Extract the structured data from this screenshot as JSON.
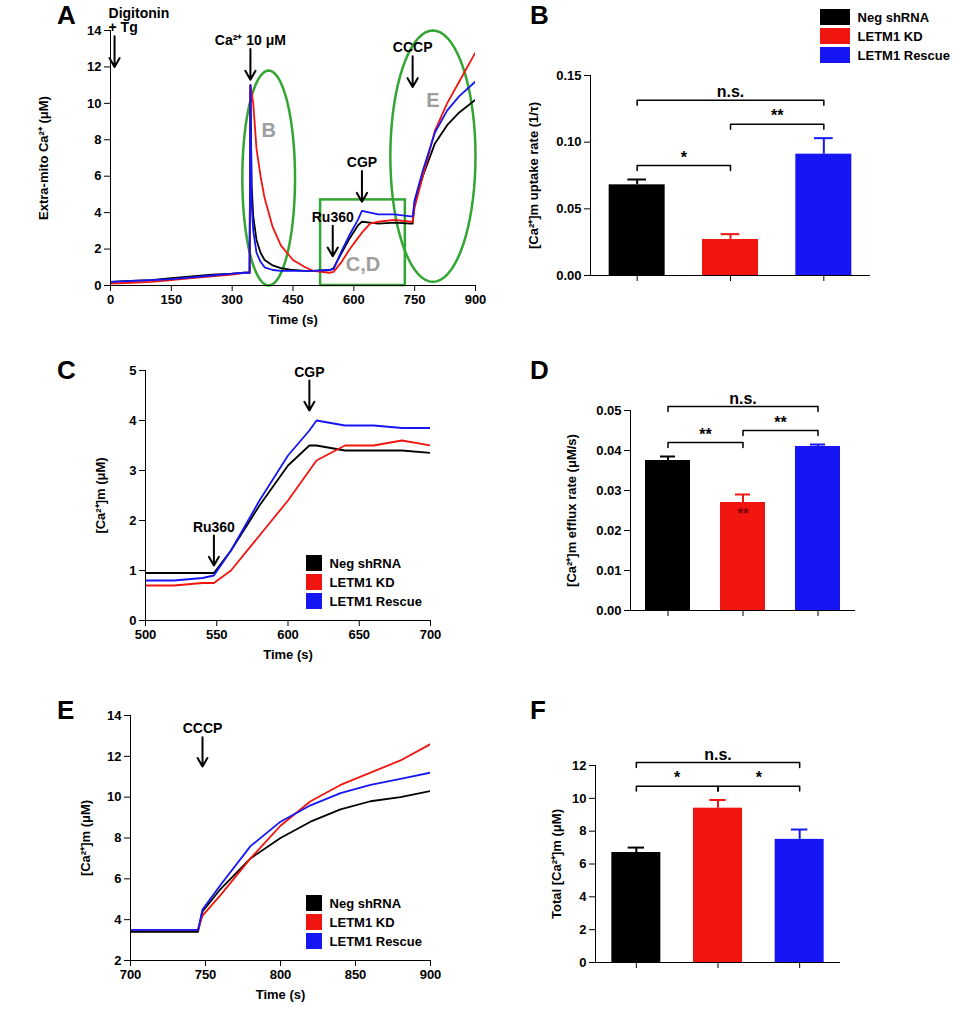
{
  "chart_data": [
    {
      "panel": "A",
      "type": "line",
      "xlabel": "Time (s)",
      "ylabel": "Extra-mito Ca²⁺ (μM)",
      "xlim": [
        0,
        900
      ],
      "xticks": [
        0,
        150,
        300,
        450,
        600,
        750,
        900
      ],
      "ylim": [
        0,
        14
      ],
      "yticks": [
        0,
        2,
        4,
        6,
        8,
        10,
        12,
        14
      ],
      "x": [
        0,
        50,
        100,
        150,
        200,
        250,
        300,
        330,
        343,
        345,
        348,
        352,
        360,
        370,
        380,
        400,
        420,
        450,
        480,
        500,
        540,
        550,
        570,
        590,
        610,
        620,
        640,
        660,
        700,
        740,
        745,
        750,
        770,
        800,
        830,
        860,
        900
      ],
      "series": [
        {
          "name": "Neg shRNA",
          "color": "#000000",
          "values": [
            0.2,
            0.25,
            0.3,
            0.4,
            0.5,
            0.6,
            0.65,
            0.7,
            0.7,
            11,
            5.5,
            3.8,
            2.5,
            1.8,
            1.4,
            1.1,
            0.95,
            0.85,
            0.8,
            0.8,
            0.85,
            0.95,
            1.8,
            2.6,
            3.3,
            3.5,
            3.45,
            3.4,
            3.45,
            3.4,
            3.4,
            4.6,
            6.0,
            7.8,
            8.8,
            9.5,
            10.2
          ]
        },
        {
          "name": "LETM1 KD",
          "color": "#f0150f",
          "values": [
            0.1,
            0.15,
            0.2,
            0.3,
            0.4,
            0.5,
            0.6,
            0.7,
            0.7,
            11,
            10.6,
            10.0,
            7.5,
            6.0,
            4.8,
            3.2,
            2.2,
            1.4,
            1.0,
            0.8,
            0.7,
            0.75,
            1.3,
            2.0,
            2.6,
            2.9,
            3.4,
            3.5,
            3.6,
            3.5,
            3.5,
            4.3,
            6.0,
            8.5,
            10.0,
            11.2,
            12.8
          ]
        },
        {
          "name": "LETM1 Rescue",
          "color": "#1616f5",
          "values": [
            0.2,
            0.25,
            0.3,
            0.35,
            0.45,
            0.55,
            0.65,
            0.7,
            0.7,
            11,
            4.5,
            3.0,
            1.8,
            1.3,
            1.0,
            0.85,
            0.8,
            0.8,
            0.8,
            0.8,
            0.85,
            0.9,
            1.9,
            2.8,
            3.6,
            4.1,
            4.0,
            3.9,
            3.9,
            3.8,
            3.8,
            4.7,
            6.3,
            8.4,
            9.6,
            10.4,
            11.2
          ]
        }
      ],
      "annotations": [
        {
          "text": "Digitonin\n+ Tg",
          "x": 10,
          "y": 12
        },
        {
          "text": "Ca²⁺ 10 μM",
          "x": 345,
          "y": 11.3
        },
        {
          "text": "Ru360",
          "x": 548,
          "y": 1.6
        },
        {
          "text": "CGP",
          "x": 620,
          "y": 4.6
        },
        {
          "text": "CCCP",
          "x": 745,
          "y": 10.9
        }
      ],
      "regions": [
        {
          "label": "B",
          "type": "ellipse",
          "x": [
            325,
            455
          ],
          "y": [
            0,
            11.8
          ],
          "color": "#33a532"
        },
        {
          "label": "C,D",
          "type": "rect",
          "x": [
            518,
            727
          ],
          "y": [
            0,
            4.7
          ],
          "color": "#33a532"
        },
        {
          "label": "E",
          "type": "ellipse",
          "x": [
            690,
            900
          ],
          "y": [
            0.2,
            14
          ],
          "color": "#33a532"
        }
      ]
    },
    {
      "panel": "B",
      "type": "bar",
      "ylabel": "[Ca²⁺]m uptake rate (1/τ)",
      "categories": [
        null,
        null,
        null
      ],
      "values": [
        0.068,
        0.027,
        0.091
      ],
      "errors": [
        0.004,
        0.004,
        0.012
      ],
      "colors": [
        "#000000",
        "#f0150f",
        "#1616f5"
      ],
      "ylim": [
        0,
        0.15
      ],
      "yticks": [
        {
          "value": 0,
          "label": "0.00"
        },
        {
          "value": 0.05,
          "label": "0.05"
        },
        {
          "value": 0.1,
          "label": "0.10"
        },
        {
          "value": 0.15,
          "label": "0.15"
        }
      ],
      "legend": "top-right",
      "legend_labels": [
        "Neg shRNA",
        "LETM1 KD",
        "LETM1 Rescue"
      ],
      "significance": [
        {
          "from": 0,
          "to": 1,
          "label": "*"
        },
        {
          "from": 1,
          "to": 2,
          "label": "**"
        },
        {
          "from": 0,
          "to": 2,
          "label": "n.s."
        }
      ]
    },
    {
      "panel": "C",
      "type": "line",
      "xlabel": "Time (s)",
      "ylabel": "[Ca²⁺]m (μM)",
      "xlim": [
        500,
        700
      ],
      "xticks": [
        500,
        550,
        600,
        650,
        700
      ],
      "ylim": [
        0,
        5
      ],
      "yticks": [
        0,
        1,
        2,
        3,
        4,
        5
      ],
      "x": [
        500,
        520,
        540,
        548,
        560,
        580,
        600,
        615,
        620,
        640,
        660,
        680,
        700
      ],
      "series": [
        {
          "name": "Neg shRNA",
          "color": "#000000",
          "values": [
            0.95,
            0.95,
            0.95,
            0.95,
            1.4,
            2.3,
            3.1,
            3.5,
            3.5,
            3.4,
            3.4,
            3.4,
            3.35
          ]
        },
        {
          "name": "LETM1 KD",
          "color": "#f0150f",
          "values": [
            0.7,
            0.7,
            0.75,
            0.75,
            1.0,
            1.7,
            2.4,
            3.0,
            3.2,
            3.5,
            3.5,
            3.6,
            3.5
          ]
        },
        {
          "name": "LETM1 Rescue",
          "color": "#1616f5",
          "values": [
            0.8,
            0.8,
            0.85,
            0.9,
            1.4,
            2.4,
            3.3,
            3.8,
            4.0,
            3.9,
            3.9,
            3.85,
            3.85
          ]
        }
      ],
      "annotations": [
        {
          "text": "Ru360",
          "x": 548,
          "y": 1.1
        },
        {
          "text": "CGP",
          "x": 615,
          "y": 4.2
        }
      ],
      "legend": "bottom-right"
    },
    {
      "panel": "D",
      "type": "bar",
      "ylabel": "[Ca²⁺]m efflux rate (μM/s)",
      "categories": [
        null,
        null,
        null
      ],
      "values": [
        0.0375,
        0.027,
        0.041
      ],
      "errors": [
        0.001,
        0.002,
        0.0005
      ],
      "colors": [
        "#000000",
        "#f0150f",
        "#1616f5"
      ],
      "ylim": [
        0,
        0.05
      ],
      "yticks": [
        {
          "value": 0,
          "label": "0.00"
        },
        {
          "value": 0.01,
          "label": "0.01"
        },
        {
          "value": 0.02,
          "label": "0.02"
        },
        {
          "value": 0.03,
          "label": "0.03"
        },
        {
          "value": 0.04,
          "label": "0.04"
        },
        {
          "value": 0.05,
          "label": "0.05"
        }
      ],
      "significance": [
        {
          "from": 0,
          "to": 1,
          "label": "**"
        },
        {
          "from": 1,
          "to": 2,
          "label": "**"
        },
        {
          "from": 0,
          "to": 2,
          "label": "n.s."
        }
      ],
      "annotations": [
        {
          "text": "**",
          "x": 1
        }
      ]
    },
    {
      "panel": "E",
      "type": "line",
      "xlabel": "Time (s)",
      "ylabel": "[Ca²⁺]m (μM)",
      "xlim": [
        700,
        900
      ],
      "xticks": [
        700,
        750,
        800,
        850,
        900
      ],
      "ylim": [
        2,
        14
      ],
      "yticks": [
        2,
        4,
        6,
        8,
        10,
        12,
        14
      ],
      "x": [
        700,
        720,
        745,
        748,
        760,
        780,
        800,
        820,
        840,
        860,
        880,
        900
      ],
      "series": [
        {
          "name": "Neg shRNA",
          "color": "#000000",
          "values": [
            3.4,
            3.4,
            3.4,
            4.4,
            5.5,
            7.0,
            8.0,
            8.8,
            9.4,
            9.8,
            10.0,
            10.3
          ]
        },
        {
          "name": "LETM1 KD",
          "color": "#f0150f",
          "values": [
            3.5,
            3.5,
            3.5,
            4.2,
            5.2,
            7.0,
            8.6,
            9.8,
            10.6,
            11.2,
            11.8,
            12.6
          ]
        },
        {
          "name": "LETM1 Rescue",
          "color": "#1616f5",
          "values": [
            3.5,
            3.5,
            3.5,
            4.5,
            5.7,
            7.6,
            8.8,
            9.6,
            10.2,
            10.6,
            10.9,
            11.2
          ]
        }
      ],
      "annotations": [
        {
          "text": "CCCP",
          "x": 748,
          "y": 11.5
        }
      ],
      "legend": "bottom-right"
    },
    {
      "panel": "F",
      "type": "bar",
      "ylabel": "Total [Ca²⁺]m (μM)",
      "categories": [
        null,
        null,
        null
      ],
      "values": [
        6.7,
        9.4,
        7.5
      ],
      "errors": [
        0.3,
        0.5,
        0.6
      ],
      "colors": [
        "#000000",
        "#f0150f",
        "#1616f5"
      ],
      "ylim": [
        0,
        12
      ],
      "yticks": [
        0,
        2,
        4,
        6,
        8,
        10,
        12
      ],
      "significance": [
        {
          "from": 0,
          "to": 1,
          "label": "*"
        },
        {
          "from": 1,
          "to": 2,
          "label": "*"
        },
        {
          "from": 0,
          "to": 2,
          "label": "n.s."
        }
      ]
    }
  ]
}
